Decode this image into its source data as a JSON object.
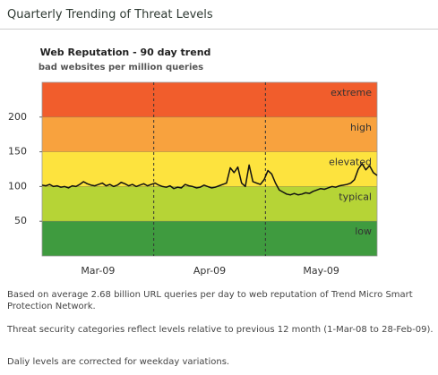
{
  "header": {
    "title": "Quarterly Trending of Threat Levels"
  },
  "chart_data": {
    "type": "line",
    "title": "Web Reputation - 90 day trend",
    "subtitle": "bad websites per million queries",
    "x_labels": [
      "Mar-09",
      "Apr-09",
      "May-09"
    ],
    "ylim": [
      0,
      250
    ],
    "yticks": [
      50,
      100,
      150,
      200
    ],
    "bands": [
      {
        "name": "extreme",
        "from": 200,
        "to": 250,
        "color": "#f15d2c"
      },
      {
        "name": "high",
        "from": 150,
        "to": 200,
        "color": "#f8a23e"
      },
      {
        "name": "elevated",
        "from": 100,
        "to": 150,
        "color": "#fde33e"
      },
      {
        "name": "typical",
        "from": 50,
        "to": 100,
        "color": "#b6d436"
      },
      {
        "name": "low",
        "from": 0,
        "to": 50,
        "color": "#3f9b3f"
      }
    ],
    "color": "#111111",
    "values": [
      102,
      101,
      103,
      100,
      101,
      99,
      100,
      98,
      101,
      100,
      103,
      107,
      104,
      102,
      101,
      103,
      105,
      101,
      103,
      100,
      102,
      106,
      104,
      101,
      103,
      100,
      102,
      104,
      101,
      103,
      105,
      102,
      100,
      99,
      101,
      97,
      99,
      98,
      103,
      101,
      100,
      98,
      99,
      102,
      100,
      98,
      99,
      101,
      103,
      105,
      127,
      120,
      128,
      105,
      100,
      131,
      107,
      105,
      103,
      110,
      123,
      118,
      105,
      95,
      92,
      89,
      88,
      90,
      88,
      89,
      91,
      90,
      93,
      95,
      97,
      96,
      98,
      100,
      99,
      101,
      102,
      103,
      105,
      110,
      125,
      133,
      124,
      130,
      120,
      116
    ]
  },
  "notes": [
    "Based on average 2.68 billion URL queries per day to web reputation of Trend Micro Smart Protection Network.",
    "Threat security categories reflect levels relative to previous 12 month (1-Mar-08 to 28-Feb-09).",
    "Daliy levels are corrected for weekday variations."
  ]
}
